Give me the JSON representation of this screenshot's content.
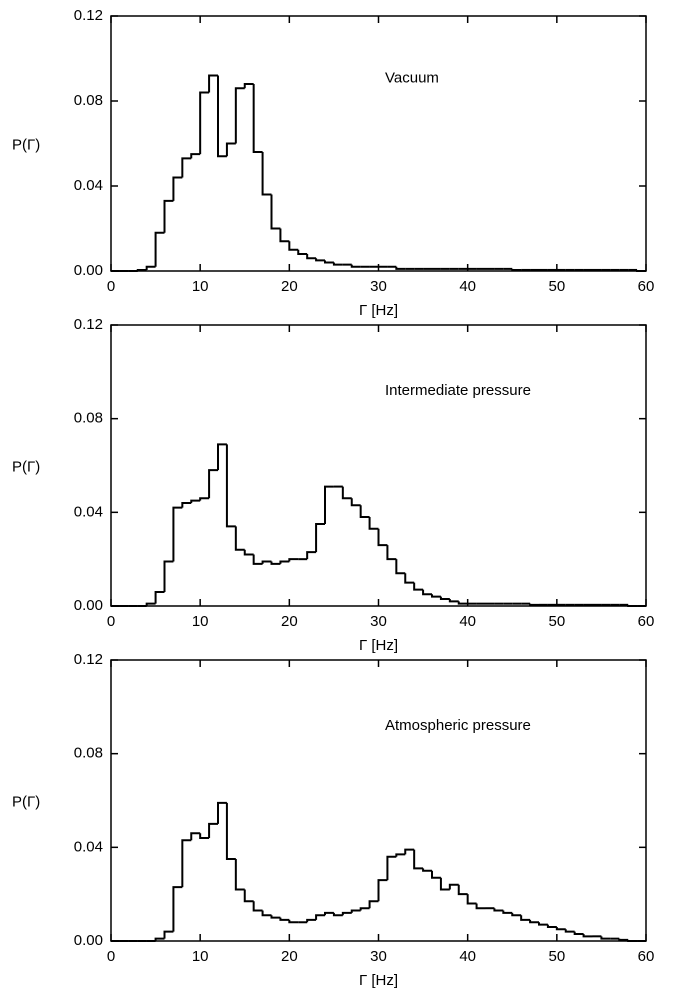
{
  "chart_data": [
    {
      "type": "histogram",
      "annotation": "Vacuum",
      "xlabel": "Γ [Hz]",
      "ylabel": "P(Γ)",
      "color": "#000000",
      "bins": [
        0,
        1,
        2,
        3,
        4,
        5,
        6,
        7,
        8,
        9,
        10,
        11,
        12,
        13,
        14,
        15,
        16,
        17,
        18,
        19,
        20,
        21,
        22,
        23,
        24,
        25,
        26,
        27,
        28,
        29,
        30,
        31,
        32,
        33,
        34,
        35,
        36,
        37,
        38,
        39,
        40,
        41,
        42,
        43,
        44,
        45,
        46,
        47,
        48,
        49,
        50,
        51,
        52,
        53,
        54,
        55,
        56,
        57,
        58,
        59,
        60
      ],
      "values": [
        0,
        0,
        0,
        0.0005,
        0.002,
        0.018,
        0.033,
        0.044,
        0.053,
        0.055,
        0.084,
        0.092,
        0.054,
        0.06,
        0.086,
        0.088,
        0.056,
        0.036,
        0.02,
        0.014,
        0.01,
        0.008,
        0.006,
        0.005,
        0.004,
        0.003,
        0.003,
        0.002,
        0.002,
        0.002,
        0.002,
        0.002,
        0.001,
        0.001,
        0.001,
        0.001,
        0.001,
        0.001,
        0.001,
        0.001,
        0.001,
        0.001,
        0.001,
        0.001,
        0.001,
        0.0005,
        0.0005,
        0.0005,
        0.0005,
        0.0005,
        0.0005,
        0.0005,
        0.0005,
        0.0005,
        0.0005,
        0.0005,
        0.0005,
        0.0005,
        0.0005,
        0
      ],
      "xlim": [
        0,
        60
      ],
      "ylim": [
        0,
        0.12
      ],
      "xticks": [
        0,
        10,
        20,
        30,
        40,
        50,
        60
      ],
      "yticks": [
        {
          "value": 0,
          "label": "0.00"
        },
        {
          "value": 0.04,
          "label": "0.04"
        },
        {
          "value": 0.08,
          "label": "0.08"
        },
        {
          "value": 0.12,
          "label": "0.12"
        }
      ]
    },
    {
      "type": "histogram",
      "annotation": "Intermediate pressure",
      "xlabel": "Γ [Hz]",
      "ylabel": "P(Γ)",
      "color": "#000000",
      "bins": [
        0,
        1,
        2,
        3,
        4,
        5,
        6,
        7,
        8,
        9,
        10,
        11,
        12,
        13,
        14,
        15,
        16,
        17,
        18,
        19,
        20,
        21,
        22,
        23,
        24,
        25,
        26,
        27,
        28,
        29,
        30,
        31,
        32,
        33,
        34,
        35,
        36,
        37,
        38,
        39,
        40,
        41,
        42,
        43,
        44,
        45,
        46,
        47,
        48,
        49,
        50,
        51,
        52,
        53,
        54,
        55,
        56,
        57,
        58,
        59,
        60
      ],
      "values": [
        0,
        0,
        0,
        0,
        0.001,
        0.006,
        0.019,
        0.042,
        0.044,
        0.045,
        0.046,
        0.058,
        0.069,
        0.034,
        0.024,
        0.022,
        0.018,
        0.019,
        0.018,
        0.019,
        0.02,
        0.02,
        0.023,
        0.035,
        0.051,
        0.051,
        0.046,
        0.043,
        0.038,
        0.033,
        0.026,
        0.02,
        0.014,
        0.01,
        0.007,
        0.005,
        0.004,
        0.003,
        0.002,
        0.001,
        0.001,
        0.001,
        0.001,
        0.001,
        0.001,
        0.001,
        0.001,
        0.0005,
        0.0005,
        0.0005,
        0.0005,
        0.0005,
        0.0005,
        0.0005,
        0.0005,
        0.0005,
        0.0005,
        0.0005,
        0,
        0
      ],
      "xlim": [
        0,
        60
      ],
      "ylim": [
        0,
        0.12
      ],
      "xticks": [
        0,
        10,
        20,
        30,
        40,
        50,
        60
      ],
      "yticks": [
        {
          "value": 0,
          "label": "0.00"
        },
        {
          "value": 0.04,
          "label": "0.04"
        },
        {
          "value": 0.08,
          "label": "0.08"
        },
        {
          "value": 0.12,
          "label": "0.12"
        }
      ]
    },
    {
      "type": "histogram",
      "annotation": "Atmospheric pressure",
      "xlabel": "Γ [Hz]",
      "ylabel": "P(Γ)",
      "color": "#000000",
      "bins": [
        0,
        1,
        2,
        3,
        4,
        5,
        6,
        7,
        8,
        9,
        10,
        11,
        12,
        13,
        14,
        15,
        16,
        17,
        18,
        19,
        20,
        21,
        22,
        23,
        24,
        25,
        26,
        27,
        28,
        29,
        30,
        31,
        32,
        33,
        34,
        35,
        36,
        37,
        38,
        39,
        40,
        41,
        42,
        43,
        44,
        45,
        46,
        47,
        48,
        49,
        50,
        51,
        52,
        53,
        54,
        55,
        56,
        57,
        58,
        59,
        60
      ],
      "values": [
        0,
        0,
        0,
        0,
        0,
        0.001,
        0.004,
        0.023,
        0.043,
        0.046,
        0.044,
        0.05,
        0.059,
        0.035,
        0.022,
        0.017,
        0.013,
        0.011,
        0.01,
        0.009,
        0.008,
        0.008,
        0.009,
        0.011,
        0.012,
        0.011,
        0.012,
        0.013,
        0.014,
        0.017,
        0.026,
        0.036,
        0.037,
        0.039,
        0.031,
        0.03,
        0.027,
        0.022,
        0.024,
        0.02,
        0.016,
        0.014,
        0.014,
        0.013,
        0.012,
        0.011,
        0.009,
        0.008,
        0.007,
        0.006,
        0.005,
        0.004,
        0.003,
        0.002,
        0.002,
        0.001,
        0.001,
        0.0005,
        0,
        0
      ],
      "xlim": [
        0,
        60
      ],
      "ylim": [
        0,
        0.12
      ],
      "xticks": [
        0,
        10,
        20,
        30,
        40,
        50,
        60
      ],
      "yticks": [
        {
          "value": 0,
          "label": "0.00"
        },
        {
          "value": 0.04,
          "label": "0.04"
        },
        {
          "value": 0.08,
          "label": "0.08"
        },
        {
          "value": 0.12,
          "label": "0.12"
        }
      ]
    }
  ]
}
